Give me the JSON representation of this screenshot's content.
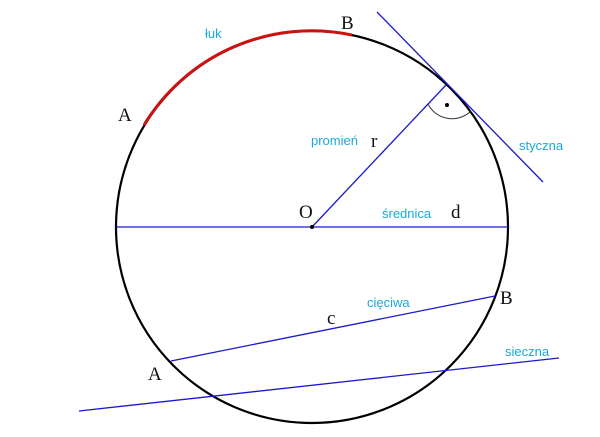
{
  "colors": {
    "circle": "#000000",
    "arc": "#cc1111",
    "lines": "#1a1acc",
    "term_labels": "#19a9d6",
    "point_labels": "#111111"
  },
  "labels": {
    "arc_top": {
      "term": "łuk",
      "point_A": "A",
      "point_B": "B"
    },
    "center": "O",
    "radius": {
      "term": "promień",
      "symbol": "r"
    },
    "tangent": "styczna",
    "diameter": {
      "term": "średnica",
      "symbol": "d"
    },
    "chord": {
      "term": "cięciwa",
      "symbol": "c",
      "point_A": "A",
      "point_B": "B"
    },
    "secant": "sieczna"
  }
}
